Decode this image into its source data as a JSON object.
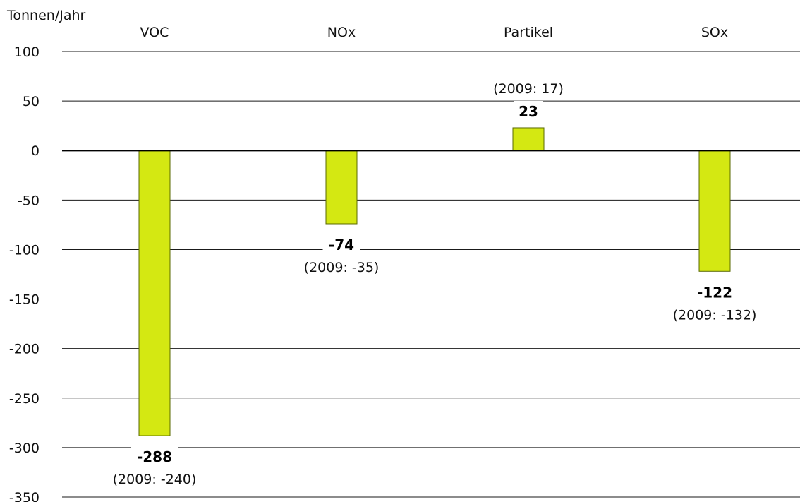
{
  "chart_data": {
    "type": "bar",
    "ylabel": "Tonnen/Jahr",
    "categories": [
      "VOC",
      "NOx",
      "Partikel",
      "SOx"
    ],
    "values": [
      -288,
      -74,
      23,
      -122
    ],
    "value_labels": [
      "-288",
      "-74",
      "23",
      "-122"
    ],
    "previous_labels": [
      "(2009: -240)",
      "(2009: -35)",
      "(2009: 17)",
      "(2009: -132)"
    ],
    "ylim": [
      -350,
      100
    ],
    "yticks": [
      100,
      50,
      0,
      -50,
      -100,
      -150,
      -200,
      -250,
      -300,
      -350
    ],
    "ytick_labels": [
      "100",
      "50",
      "0",
      "-50",
      "-100",
      "-150",
      "-200",
      "-250",
      "-300",
      "-350"
    ],
    "grid": true,
    "legend": "none",
    "bar_color": "#d4e812"
  }
}
